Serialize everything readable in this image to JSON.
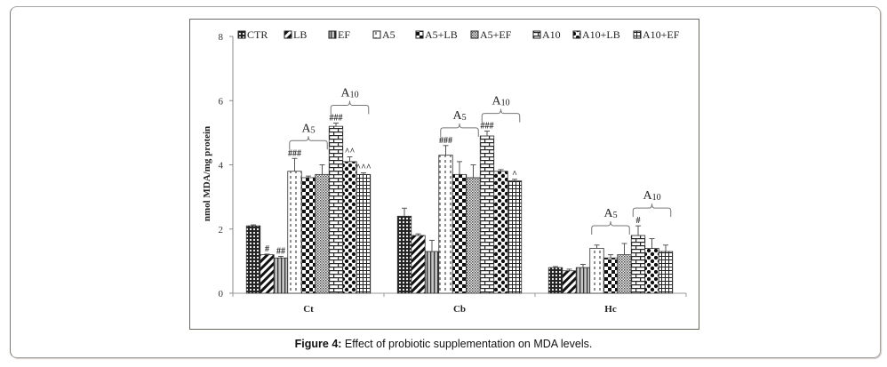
{
  "caption": {
    "label": "Figure 4:",
    "text": " Effect of probiotic supplementation on MDA levels."
  },
  "chart_data": {
    "type": "bar",
    "title": "",
    "xlabel": "",
    "ylabel": "nmol MDA/mg protein",
    "ylim": [
      0,
      8
    ],
    "yticks": [
      0,
      2,
      4,
      6,
      8
    ],
    "grid": false,
    "legend_position": "top",
    "categories": [
      "Ct",
      "Cb",
      "Hc"
    ],
    "series": [
      {
        "name": "CTR",
        "values": [
          2.1,
          2.4,
          0.8
        ],
        "errors": [
          0.03,
          0.25,
          0.03
        ]
      },
      {
        "name": "LB",
        "values": [
          1.2,
          1.8,
          0.7
        ],
        "errors": [
          0.02,
          0.05,
          0.05
        ]
      },
      {
        "name": "EF",
        "values": [
          1.1,
          1.3,
          0.8
        ],
        "errors": [
          0.05,
          0.35,
          0.1
        ]
      },
      {
        "name": "A5",
        "values": [
          3.8,
          4.3,
          1.4
        ],
        "errors": [
          0.4,
          0.3,
          0.1
        ]
      },
      {
        "name": "A5+LB",
        "values": [
          3.6,
          3.7,
          1.1
        ],
        "errors": [
          0.05,
          0.4,
          0.1
        ]
      },
      {
        "name": "A5+EF",
        "values": [
          3.7,
          3.6,
          1.2
        ],
        "errors": [
          0.3,
          0.4,
          0.35
        ]
      },
      {
        "name": "A10",
        "values": [
          5.2,
          4.9,
          1.8
        ],
        "errors": [
          0.1,
          0.15,
          0.3
        ]
      },
      {
        "name": "A10+LB",
        "values": [
          4.1,
          3.8,
          1.4
        ],
        "errors": [
          0.15,
          0.05,
          0.3
        ]
      },
      {
        "name": "A10+EF",
        "values": [
          3.7,
          3.5,
          1.3
        ],
        "errors": [
          0.05,
          0.05,
          0.2
        ]
      }
    ],
    "annotations": [
      {
        "category": "Ct",
        "series": "LB",
        "text": "#"
      },
      {
        "category": "Ct",
        "series": "EF",
        "text": "##"
      },
      {
        "category": "Ct",
        "series": "A5",
        "text": "###"
      },
      {
        "category": "Ct",
        "series": "A10",
        "text": "###"
      },
      {
        "category": "Ct",
        "series": "A10+LB",
        "text": "^^"
      },
      {
        "category": "Ct",
        "series": "A10+EF",
        "text": "^^^"
      },
      {
        "category": "Cb",
        "series": "A5",
        "text": "###"
      },
      {
        "category": "Cb",
        "series": "A10",
        "text": "###"
      },
      {
        "category": "Cb",
        "series": "A10+EF",
        "text": "^"
      },
      {
        "category": "Hc",
        "series": "A10",
        "text": "#"
      }
    ],
    "brackets": [
      {
        "category": "Ct",
        "from": "A5",
        "to": "A5+EF",
        "label": "A",
        "sub": "5"
      },
      {
        "category": "Ct",
        "from": "A10",
        "to": "A10+EF",
        "label": "A",
        "sub": "10"
      },
      {
        "category": "Cb",
        "from": "A5",
        "to": "A5+EF",
        "label": "A",
        "sub": "5"
      },
      {
        "category": "Cb",
        "from": "A10",
        "to": "A10+EF",
        "label": "A",
        "sub": "10"
      },
      {
        "category": "Hc",
        "from": "A5",
        "to": "A5+EF",
        "label": "A",
        "sub": "5"
      },
      {
        "category": "Hc",
        "from": "A10",
        "to": "A10+EF",
        "label": "A",
        "sub": "10"
      }
    ]
  }
}
